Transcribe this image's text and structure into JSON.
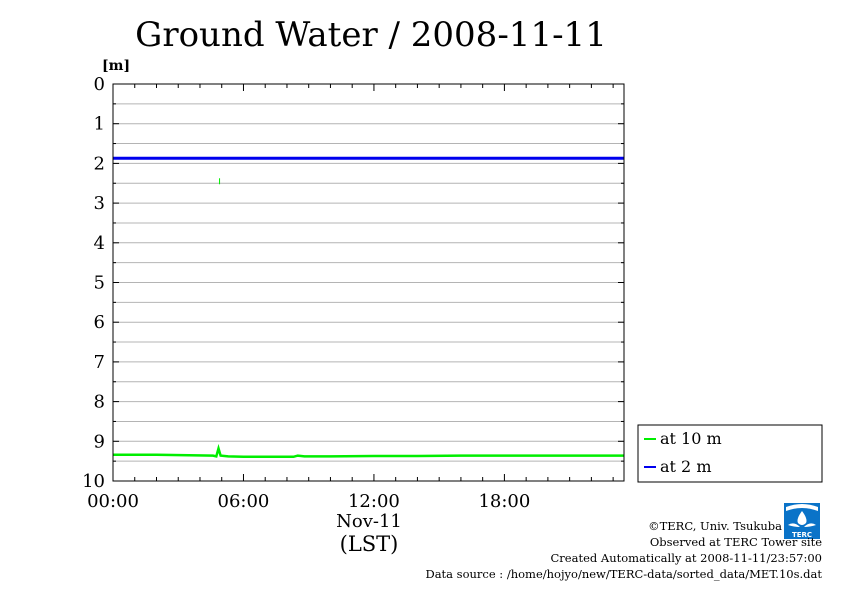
{
  "chart_data": {
    "type": "line",
    "title": "Ground Water / 2008-11-11",
    "ylabel": "[m]",
    "xlabel": "Nov-11",
    "xlabel2": "(LST)",
    "y_inverted": true,
    "ylim": [
      0,
      10
    ],
    "y_ticks": [
      "0",
      "1",
      "2",
      "3",
      "4",
      "5",
      "6",
      "7",
      "8",
      "9",
      "10"
    ],
    "xlim_hours": [
      0,
      23.5
    ],
    "x_ticks": [
      {
        "label": "00:00",
        "hour": 0
      },
      {
        "label": "06:00",
        "hour": 6
      },
      {
        "label": "12:00",
        "hour": 12
      },
      {
        "label": "18:00",
        "hour": 18
      }
    ],
    "grid": true,
    "legend_position": "bottom-right-outside",
    "series": [
      {
        "name": "at 10 m",
        "color": "#00ee00",
        "points": [
          [
            0,
            9.34
          ],
          [
            2,
            9.34
          ],
          [
            3.5,
            9.35
          ],
          [
            4.6,
            9.36
          ],
          [
            4.75,
            9.38
          ],
          [
            4.85,
            9.18
          ],
          [
            4.95,
            9.36
          ],
          [
            5.3,
            9.38
          ],
          [
            6,
            9.39
          ],
          [
            7,
            9.39
          ],
          [
            8.3,
            9.39
          ],
          [
            8.5,
            9.36
          ],
          [
            8.8,
            9.38
          ],
          [
            10,
            9.38
          ],
          [
            12,
            9.37
          ],
          [
            14,
            9.37
          ],
          [
            16,
            9.36
          ],
          [
            18,
            9.36
          ],
          [
            20,
            9.36
          ],
          [
            22,
            9.36
          ],
          [
            23.5,
            9.36
          ]
        ],
        "outliers": [
          [
            4.9,
            2.45
          ]
        ]
      },
      {
        "name": "at 2 m",
        "color": "#0000ee",
        "points": [
          [
            0,
            1.87
          ],
          [
            23.5,
            1.87
          ]
        ]
      }
    ]
  },
  "footer": {
    "copyright": "©TERC, Univ. Tsukuba",
    "observed": "Observed at TERC Tower site",
    "created": "Created Automatically at 2008-11-11/23:57:00",
    "source": "Data source : /home/hojyo/new/TERC-data/sorted_data/MET.10s.dat"
  },
  "logo_text": "TERC",
  "colors": {
    "logo": "#0a73c8"
  }
}
